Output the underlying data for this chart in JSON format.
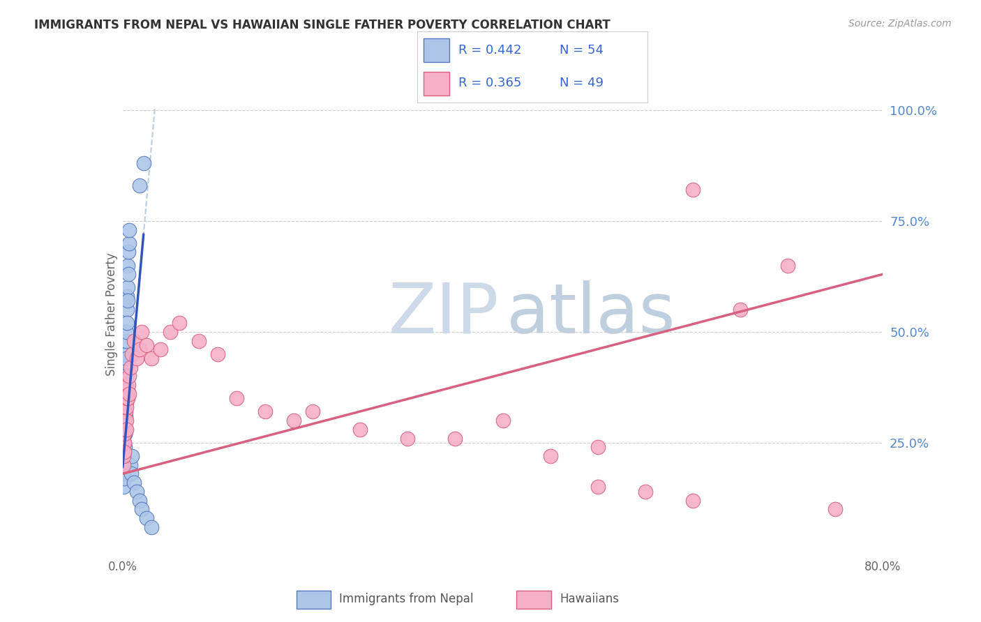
{
  "title": "IMMIGRANTS FROM NEPAL VS HAWAIIAN SINGLE FATHER POVERTY CORRELATION CHART",
  "source": "Source: ZipAtlas.com",
  "ylabel": "Single Father Poverty",
  "legend_blue_label": "Immigrants from Nepal",
  "legend_pink_label": "Hawaiians",
  "xlim": [
    0.0,
    0.8
  ],
  "ylim": [
    0.0,
    1.08
  ],
  "blue_scatter_x": [
    0.0008,
    0.0008,
    0.001,
    0.001,
    0.0012,
    0.0012,
    0.0015,
    0.0015,
    0.0015,
    0.0018,
    0.0018,
    0.002,
    0.002,
    0.002,
    0.0022,
    0.0022,
    0.0025,
    0.0025,
    0.0025,
    0.0028,
    0.0028,
    0.003,
    0.003,
    0.003,
    0.0032,
    0.0032,
    0.0035,
    0.0035,
    0.0038,
    0.0038,
    0.004,
    0.004,
    0.0042,
    0.0045,
    0.0045,
    0.0048,
    0.005,
    0.005,
    0.0055,
    0.006,
    0.006,
    0.0065,
    0.007,
    0.008,
    0.009,
    0.01,
    0.012,
    0.015,
    0.018,
    0.02,
    0.025,
    0.03,
    0.018,
    0.022
  ],
  "blue_scatter_y": [
    0.2,
    0.17,
    0.19,
    0.15,
    0.21,
    0.18,
    0.22,
    0.2,
    0.17,
    0.24,
    0.22,
    0.28,
    0.25,
    0.23,
    0.27,
    0.24,
    0.32,
    0.3,
    0.27,
    0.35,
    0.31,
    0.38,
    0.35,
    0.3,
    0.4,
    0.36,
    0.42,
    0.38,
    0.45,
    0.4,
    0.48,
    0.44,
    0.5,
    0.55,
    0.52,
    0.58,
    0.6,
    0.57,
    0.65,
    0.68,
    0.63,
    0.7,
    0.73,
    0.2,
    0.18,
    0.22,
    0.16,
    0.14,
    0.12,
    0.1,
    0.08,
    0.06,
    0.83,
    0.88
  ],
  "pink_scatter_x": [
    0.0008,
    0.001,
    0.0015,
    0.0018,
    0.002,
    0.0022,
    0.0025,
    0.0028,
    0.003,
    0.0035,
    0.0038,
    0.004,
    0.0042,
    0.0045,
    0.005,
    0.0055,
    0.006,
    0.0065,
    0.007,
    0.008,
    0.01,
    0.012,
    0.015,
    0.018,
    0.02,
    0.025,
    0.03,
    0.04,
    0.05,
    0.06,
    0.08,
    0.1,
    0.12,
    0.15,
    0.18,
    0.2,
    0.25,
    0.3,
    0.35,
    0.4,
    0.45,
    0.5,
    0.55,
    0.6,
    0.65,
    0.7,
    0.75,
    0.5,
    0.6
  ],
  "pink_scatter_y": [
    0.2,
    0.22,
    0.25,
    0.23,
    0.27,
    0.28,
    0.3,
    0.28,
    0.32,
    0.34,
    0.3,
    0.33,
    0.28,
    0.35,
    0.37,
    0.35,
    0.38,
    0.36,
    0.4,
    0.42,
    0.45,
    0.48,
    0.44,
    0.46,
    0.5,
    0.47,
    0.44,
    0.46,
    0.5,
    0.52,
    0.48,
    0.45,
    0.35,
    0.32,
    0.3,
    0.32,
    0.28,
    0.26,
    0.26,
    0.3,
    0.22,
    0.15,
    0.14,
    0.12,
    0.55,
    0.65,
    0.1,
    0.24,
    0.82
  ],
  "blue_marker_color": "#adc6e8",
  "blue_edge_color": "#5578bb",
  "pink_marker_color": "#f5b0c8",
  "pink_edge_color": "#d86080",
  "blue_line_color": "#3355bb",
  "pink_line_color": "#d86080",
  "dashed_color": "#b8cce0",
  "grid_color": "#cccccc",
  "right_tick_color": "#5588cc",
  "watermark_zip_color": "#cdd8e8",
  "watermark_atlas_color": "#c0cfe0",
  "source_color": "#999999",
  "title_color": "#333333",
  "legend_color": "#3366cc",
  "legend_pink_color": "#d86080"
}
